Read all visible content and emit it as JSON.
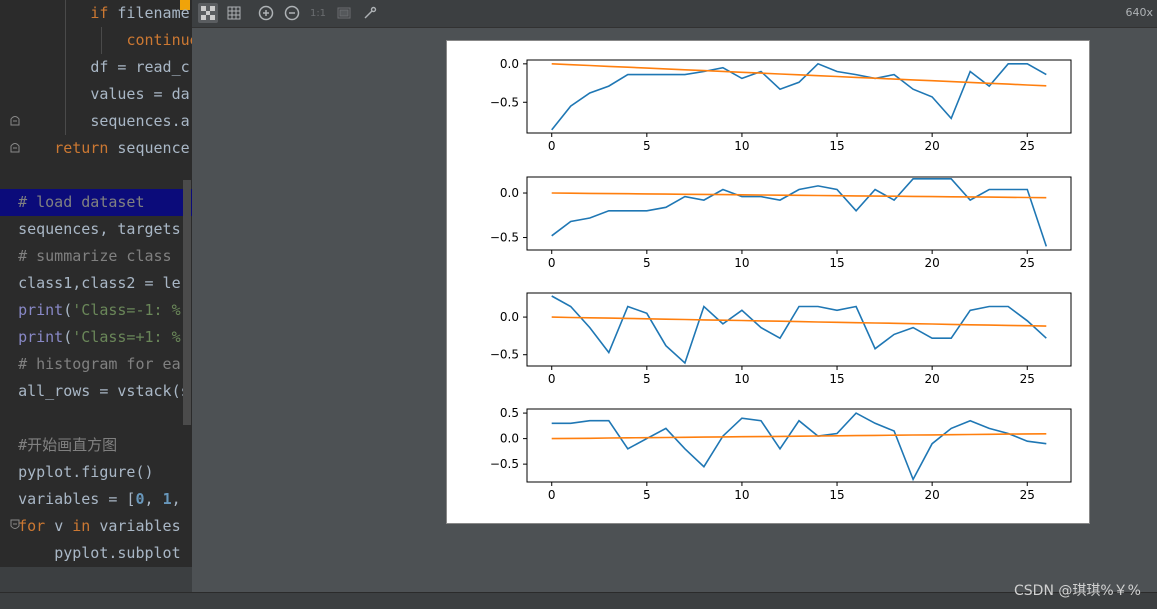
{
  "editor": {
    "lines": [
      {
        "indent": "          ",
        "parts": [
          {
            "t": "if ",
            "c": "kw"
          },
          {
            "t": "filename",
            "c": ""
          }
        ]
      },
      {
        "indent": "              ",
        "parts": [
          {
            "t": "continue",
            "c": "kw"
          }
        ]
      },
      {
        "indent": "          ",
        "parts": [
          {
            "t": "df = read_c",
            "c": ""
          }
        ]
      },
      {
        "indent": "          ",
        "parts": [
          {
            "t": "values = da",
            "c": ""
          }
        ]
      },
      {
        "indent": "          ",
        "parts": [
          {
            "t": "sequences.a",
            "c": ""
          }
        ]
      },
      {
        "indent": "      ",
        "parts": [
          {
            "t": "return ",
            "c": "kw"
          },
          {
            "t": "sequence",
            "c": ""
          }
        ]
      },
      {
        "indent": "",
        "parts": [
          {
            "t": "",
            "c": ""
          }
        ]
      },
      {
        "indent": "  ",
        "parts": [
          {
            "t": "# load dataset",
            "c": "cm"
          }
        ],
        "selected": true
      },
      {
        "indent": "  ",
        "parts": [
          {
            "t": "sequences, targets",
            "c": ""
          }
        ]
      },
      {
        "indent": "  ",
        "parts": [
          {
            "t": "# summarize class ",
            "c": "cm"
          }
        ]
      },
      {
        "indent": "  ",
        "parts": [
          {
            "t": "class1,class2 = le",
            "c": ""
          }
        ]
      },
      {
        "indent": "  ",
        "parts": [
          {
            "t": "print",
            "c": "fn"
          },
          {
            "t": "(",
            "c": ""
          },
          {
            "t": "'Class=-1: %",
            "c": "st"
          }
        ]
      },
      {
        "indent": "  ",
        "parts": [
          {
            "t": "print",
            "c": "fn"
          },
          {
            "t": "(",
            "c": ""
          },
          {
            "t": "'Class=+1: %",
            "c": "st"
          }
        ]
      },
      {
        "indent": "  ",
        "parts": [
          {
            "t": "# histogram for ea",
            "c": "cm"
          }
        ]
      },
      {
        "indent": "  ",
        "parts": [
          {
            "t": "all_rows = vstack(s",
            "c": ""
          }
        ]
      },
      {
        "indent": "",
        "parts": [
          {
            "t": "",
            "c": ""
          }
        ]
      },
      {
        "indent": "  ",
        "parts": [
          {
            "t": "#开始画直方图",
            "c": "cm"
          }
        ]
      },
      {
        "indent": "  ",
        "parts": [
          {
            "t": "pyplot.figure()",
            "c": ""
          }
        ]
      },
      {
        "indent": "  ",
        "parts": [
          {
            "t": "variables = [",
            "c": ""
          },
          {
            "t": "0",
            "c": "num"
          },
          {
            "t": ", ",
            "c": ""
          },
          {
            "t": "1",
            "c": "num"
          },
          {
            "t": ",",
            "c": ""
          }
        ]
      },
      {
        "indent": "  ",
        "parts": [
          {
            "t": "for ",
            "c": "kw"
          },
          {
            "t": "v ",
            "c": ""
          },
          {
            "t": "in ",
            "c": "kw"
          },
          {
            "t": "variables",
            "c": ""
          }
        ]
      },
      {
        "indent": "      ",
        "parts": [
          {
            "t": "pyplot.subplot",
            "c": ""
          }
        ]
      }
    ]
  },
  "viewer": {
    "zoom_label": "640x",
    "toolbar": [
      "checker-icon",
      "grid-icon",
      "zoom-in-icon",
      "zoom-out-icon",
      "actual-size-icon",
      "fit-icon",
      "color-picker-icon"
    ],
    "actual_size_label": "1:1"
  },
  "watermark": "CSDN @琪琪%￥%",
  "chart_data": [
    {
      "type": "line",
      "x": [
        0,
        1,
        2,
        3,
        4,
        5,
        6,
        7,
        8,
        9,
        10,
        11,
        12,
        13,
        14,
        15,
        16,
        17,
        18,
        19,
        20,
        21,
        22,
        23,
        24,
        25,
        26
      ],
      "series": [
        {
          "color": "#1f77b4",
          "values": [
            -0.86,
            -0.55,
            -0.38,
            -0.29,
            -0.14,
            -0.14,
            -0.14,
            -0.14,
            -0.1,
            -0.05,
            -0.19,
            -0.1,
            -0.33,
            -0.24,
            0.0,
            -0.1,
            -0.14,
            -0.19,
            -0.14,
            -0.33,
            -0.43,
            -0.71,
            -0.1,
            -0.29,
            0.0,
            0.0,
            -0.14
          ]
        },
        {
          "color": "#ff7f0e",
          "values": [
            0.0,
            -0.011,
            -0.022,
            -0.033,
            -0.044,
            -0.055,
            -0.066,
            -0.077,
            -0.088,
            -0.099,
            -0.11,
            -0.121,
            -0.132,
            -0.143,
            -0.154,
            -0.165,
            -0.176,
            -0.187,
            -0.198,
            -0.209,
            -0.22,
            -0.231,
            -0.242,
            -0.253,
            -0.264,
            -0.275,
            -0.286
          ]
        }
      ],
      "xticks": [
        0,
        5,
        10,
        15,
        20,
        25
      ],
      "yticks": [
        0.0,
        -0.5
      ],
      "ylim": [
        -0.9,
        0.05
      ],
      "xlim": [
        -1.3,
        27.3
      ]
    },
    {
      "type": "line",
      "x": [
        0,
        1,
        2,
        3,
        4,
        5,
        6,
        7,
        8,
        9,
        10,
        11,
        12,
        13,
        14,
        15,
        16,
        17,
        18,
        19,
        20,
        21,
        22,
        23,
        24,
        25,
        26
      ],
      "series": [
        {
          "color": "#1f77b4",
          "values": [
            -0.48,
            -0.32,
            -0.28,
            -0.2,
            -0.2,
            -0.2,
            -0.16,
            -0.04,
            -0.08,
            0.04,
            -0.04,
            -0.04,
            -0.08,
            0.04,
            0.08,
            0.04,
            -0.2,
            0.04,
            -0.08,
            0.16,
            0.16,
            0.16,
            -0.08,
            0.04,
            0.04,
            0.04,
            -0.6
          ]
        },
        {
          "color": "#ff7f0e",
          "values": [
            0.0,
            -0.002,
            -0.004,
            -0.006,
            -0.008,
            -0.01,
            -0.012,
            -0.014,
            -0.016,
            -0.018,
            -0.02,
            -0.022,
            -0.024,
            -0.026,
            -0.028,
            -0.03,
            -0.032,
            -0.034,
            -0.036,
            -0.038,
            -0.04,
            -0.042,
            -0.044,
            -0.046,
            -0.048,
            -0.05,
            -0.052
          ]
        }
      ],
      "xticks": [
        0,
        5,
        10,
        15,
        20,
        25
      ],
      "yticks": [
        0.0,
        -0.5
      ],
      "ylim": [
        -0.64,
        0.18
      ],
      "xlim": [
        -1.3,
        27.3
      ]
    },
    {
      "type": "line",
      "x": [
        0,
        1,
        2,
        3,
        4,
        5,
        6,
        7,
        8,
        9,
        10,
        11,
        12,
        13,
        14,
        15,
        16,
        17,
        18,
        19,
        20,
        21,
        22,
        23,
        24,
        25,
        26
      ],
      "series": [
        {
          "color": "#1f77b4",
          "values": [
            0.28,
            0.14,
            -0.14,
            -0.47,
            0.14,
            0.05,
            -0.38,
            -0.61,
            0.14,
            -0.09,
            0.09,
            -0.14,
            -0.28,
            0.14,
            0.14,
            0.09,
            0.14,
            -0.42,
            -0.23,
            -0.14,
            -0.28,
            -0.28,
            0.09,
            0.14,
            0.14,
            -0.05,
            -0.28
          ]
        },
        {
          "color": "#ff7f0e",
          "values": [
            0.0,
            -0.005,
            -0.009,
            -0.014,
            -0.018,
            -0.023,
            -0.028,
            -0.032,
            -0.037,
            -0.042,
            -0.046,
            -0.051,
            -0.055,
            -0.06,
            -0.065,
            -0.069,
            -0.074,
            -0.078,
            -0.083,
            -0.088,
            -0.092,
            -0.097,
            -0.102,
            -0.106,
            -0.111,
            -0.115,
            -0.12
          ]
        }
      ],
      "xticks": [
        0,
        5,
        10,
        15,
        20,
        25
      ],
      "yticks": [
        0.0,
        -0.5
      ],
      "ylim": [
        -0.65,
        0.32
      ],
      "xlim": [
        -1.3,
        27.3
      ]
    },
    {
      "type": "line",
      "x": [
        0,
        1,
        2,
        3,
        4,
        5,
        6,
        7,
        8,
        9,
        10,
        11,
        12,
        13,
        14,
        15,
        16,
        17,
        18,
        19,
        20,
        21,
        22,
        23,
        24,
        25,
        26
      ],
      "series": [
        {
          "color": "#1f77b4",
          "values": [
            0.3,
            0.3,
            0.35,
            0.35,
            -0.2,
            0.0,
            0.2,
            -0.2,
            -0.55,
            0.05,
            0.4,
            0.35,
            -0.2,
            0.35,
            0.05,
            0.1,
            0.5,
            0.3,
            0.15,
            -0.8,
            -0.1,
            0.2,
            0.35,
            0.2,
            0.1,
            -0.05,
            -0.1
          ]
        },
        {
          "color": "#ff7f0e",
          "values": [
            0.0,
            0.004,
            0.007,
            0.011,
            0.015,
            0.018,
            0.022,
            0.026,
            0.029,
            0.033,
            0.037,
            0.04,
            0.044,
            0.048,
            0.051,
            0.055,
            0.059,
            0.062,
            0.066,
            0.07,
            0.073,
            0.077,
            0.081,
            0.084,
            0.088,
            0.092,
            0.095
          ]
        }
      ],
      "xticks": [
        0,
        5,
        10,
        15,
        20,
        25
      ],
      "yticks": [
        0.5,
        0.0,
        -0.5
      ],
      "ylim": [
        -0.85,
        0.58
      ],
      "xlim": [
        -1.3,
        27.3
      ]
    }
  ]
}
